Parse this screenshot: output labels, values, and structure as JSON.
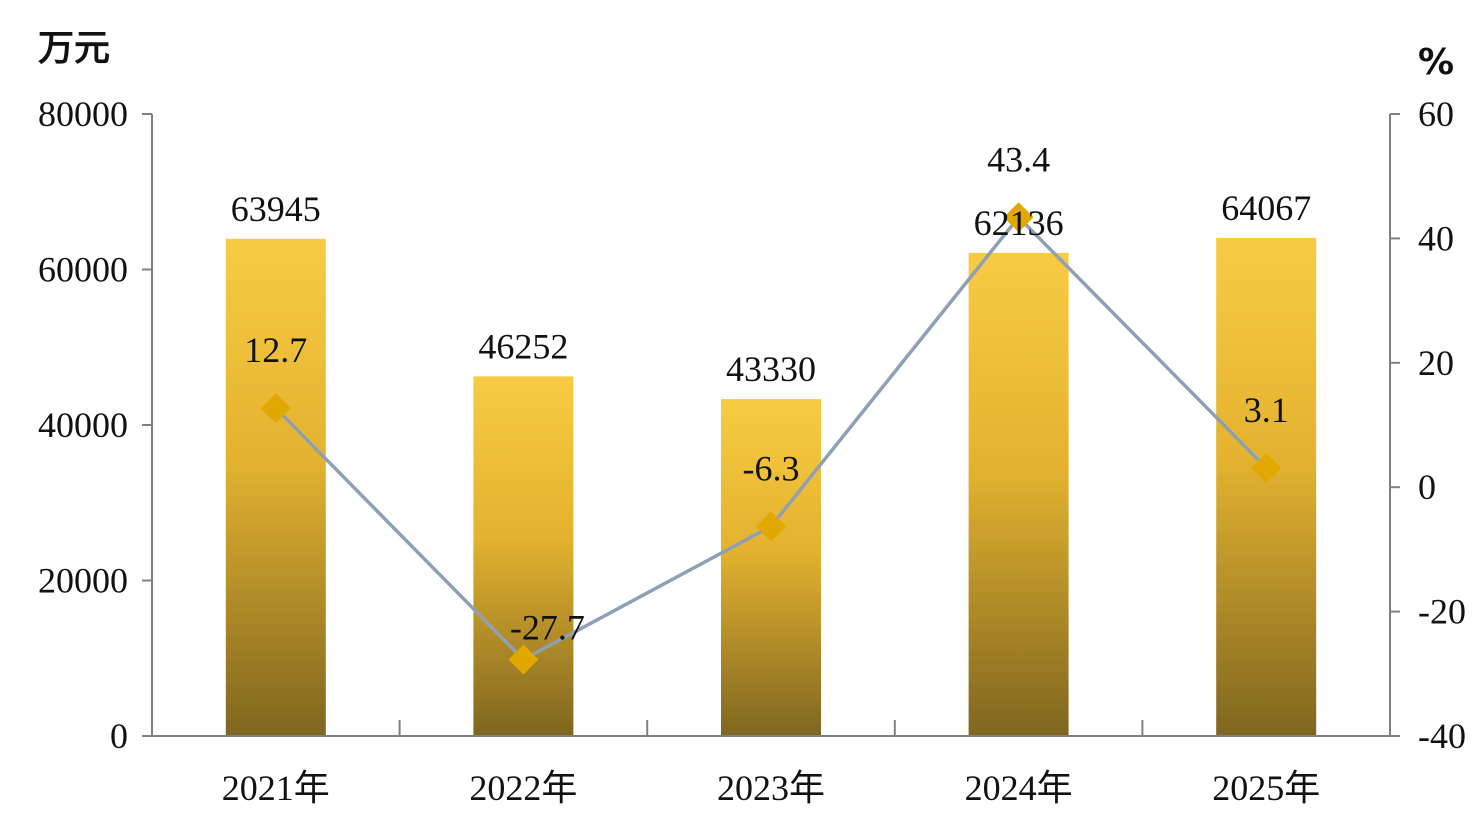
{
  "chart_data": {
    "type": "bar",
    "categories": [
      "2021年",
      "2022年",
      "2023年",
      "2024年",
      "2025年"
    ],
    "series": [
      {
        "values": [
          63945,
          46252,
          43330,
          62136,
          64067
        ],
        "axis": "left",
        "kind": "bar"
      },
      {
        "values": [
          12.7,
          -27.7,
          -6.3,
          43.4,
          3.1
        ],
        "axis": "right",
        "kind": "line"
      }
    ],
    "y_left": {
      "unit": "万元",
      "range": [
        0,
        80000
      ],
      "ticks": [
        "0",
        "20000",
        "40000",
        "60000",
        "80000"
      ]
    },
    "y_right": {
      "unit": "%",
      "range": [
        -40,
        60
      ],
      "ticks": [
        "-40",
        "-20",
        "0",
        "20",
        "40",
        "60"
      ]
    },
    "bar_labels": [
      "63945",
      "46252",
      "43330",
      "62136",
      "64067"
    ],
    "line_labels": [
      "12.7",
      "-27.7",
      "-6.3",
      "43.4",
      "3.1"
    ],
    "grid": false,
    "legend": "none",
    "colors": {
      "bar_top": "#f9cb43",
      "bar_mid": "#e3b22f",
      "bar_bottom": "#7f6620",
      "line": "#8fa0b5",
      "marker": "#e0a800",
      "axis": "#808080"
    }
  }
}
